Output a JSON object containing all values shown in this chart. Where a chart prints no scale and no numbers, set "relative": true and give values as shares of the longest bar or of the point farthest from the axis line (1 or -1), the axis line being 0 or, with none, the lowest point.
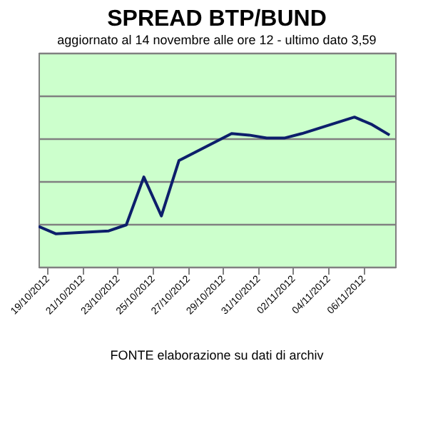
{
  "chart_data": {
    "type": "line",
    "title": "SPREAD  BTP/BUND",
    "subtitle": "aggiornato al 14 novembre alle ore 12 - ultimo dato 3,59",
    "x": [
      "2012-10-18T12:00",
      "2012-10-19T12:00",
      "2012-10-22T12:00",
      "2012-10-23T12:00",
      "2012-10-24T12:00",
      "2012-10-25T12:00",
      "2012-10-26T12:00",
      "2012-10-29T12:00",
      "2012-10-30T12:00",
      "2012-10-31T12:00",
      "2012-11-01T12:00",
      "2012-11-02T12:00",
      "2012-11-05T12:00",
      "2012-11-06T12:00",
      "2012-11-07T12:00"
    ],
    "series": [
      {
        "color": "#0d1f6b",
        "values": [
          0.27,
          0.22,
          0.24,
          0.28,
          0.6,
          0.34,
          0.71,
          0.89,
          0.88,
          0.86,
          0.86,
          0.89,
          1,
          0.95,
          0.88
        ]
      }
    ],
    "relative": true,
    "xlim": [
      "2012-10-18T12:00",
      "2012-11-07T19:40"
    ],
    "xticks": [
      {
        "value": "2012-10-19",
        "label": "19/10/2012"
      },
      {
        "value": "2012-10-21",
        "label": "21/10/2012"
      },
      {
        "value": "2012-10-23",
        "label": "23/10/2012"
      },
      {
        "value": "2012-10-25",
        "label": "25/10/2012"
      },
      {
        "value": "2012-10-27",
        "label": "27/10/2012"
      },
      {
        "value": "2012-10-29",
        "label": "29/10/2012"
      },
      {
        "value": "2012-10-31",
        "label": "31/10/2012"
      },
      {
        "value": "2012-11-02",
        "label": "02/11/2012"
      },
      {
        "value": "2012-11-04",
        "label": "04/11/2012"
      },
      {
        "value": "2012-11-06",
        "label": "06/11/2012"
      }
    ],
    "grid": "y",
    "marker": "none",
    "line_style": "solid",
    "legend": false,
    "annotations": [
      "FONTE elaborazione su dati di archiv"
    ]
  }
}
